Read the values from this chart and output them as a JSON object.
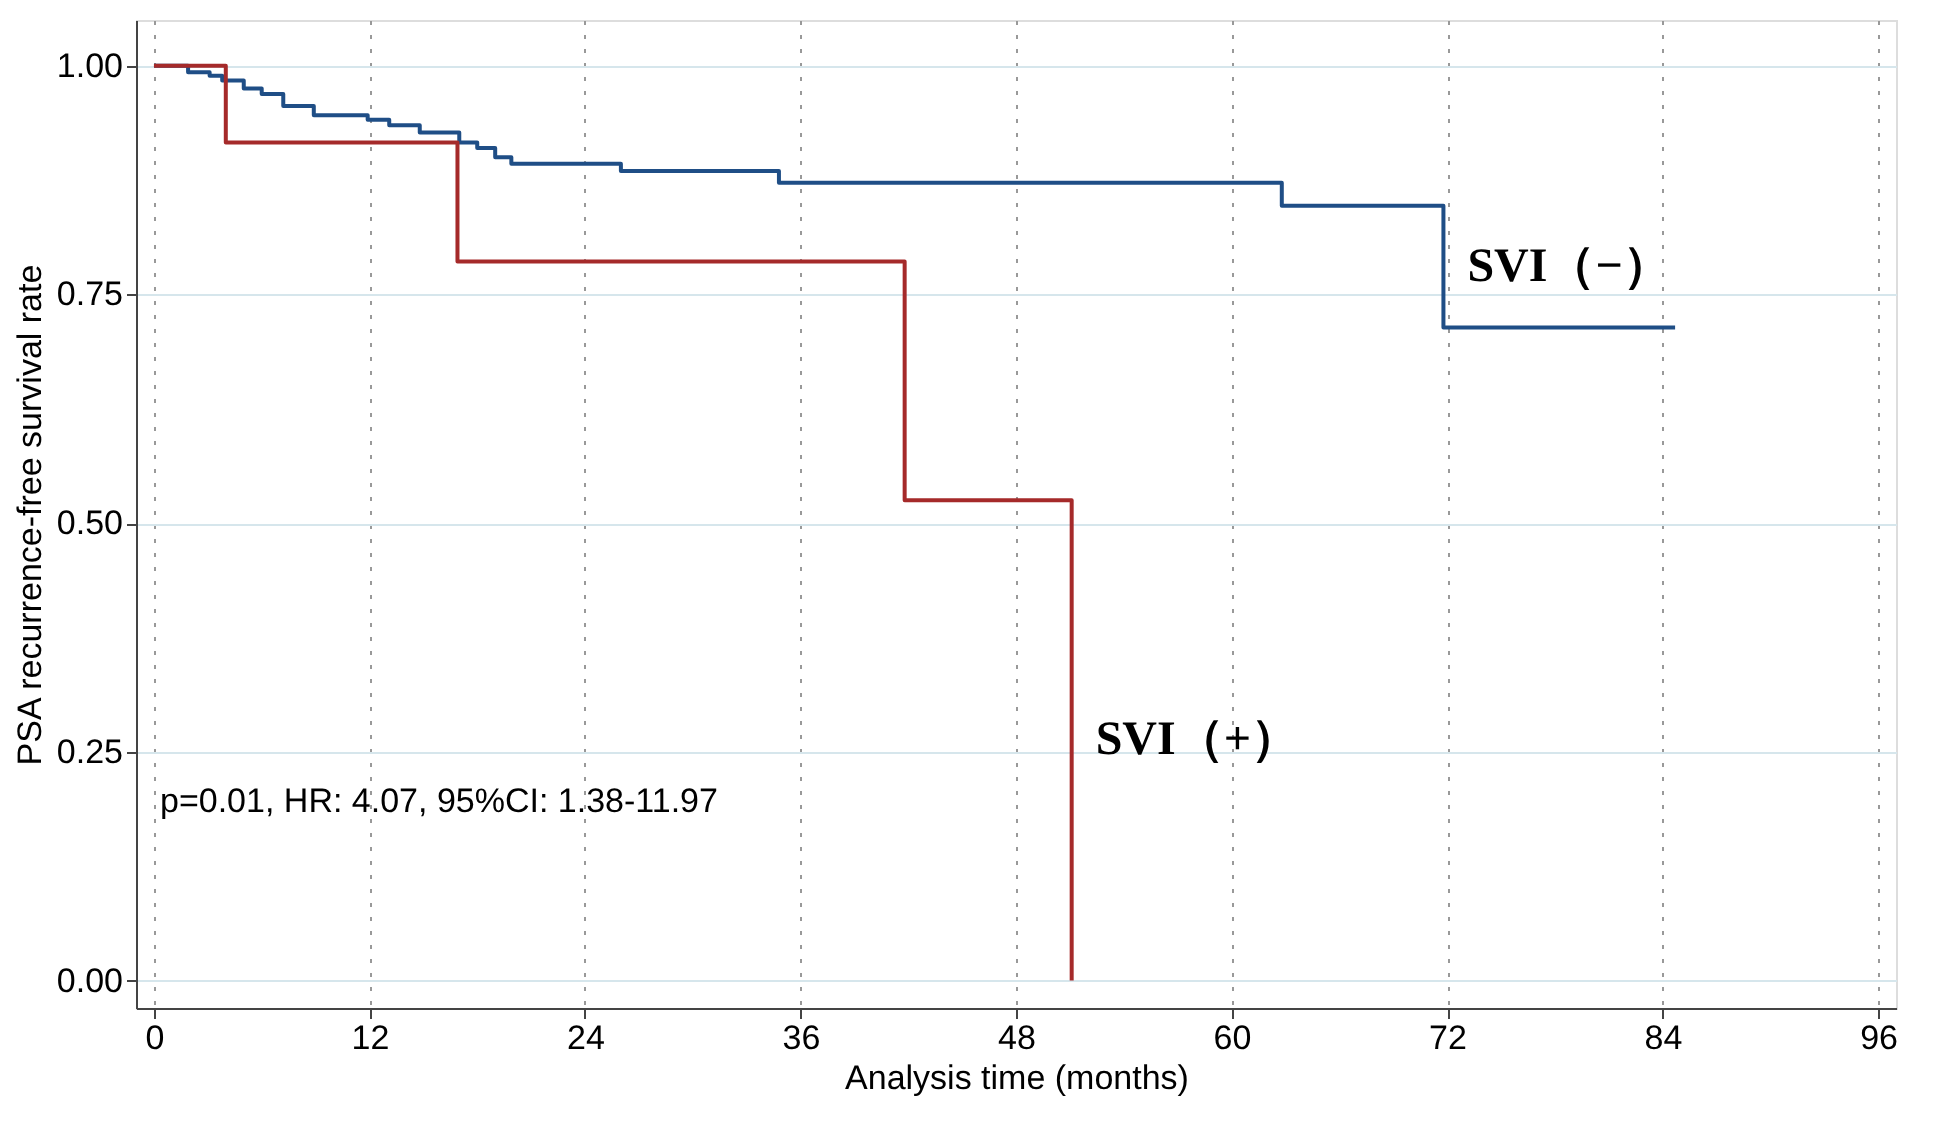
{
  "chart_data": {
    "type": "step",
    "xlabel": "Analysis time (months)",
    "ylabel": "PSA recurrence-free survival rate",
    "xlim": [
      -1,
      97
    ],
    "ylim": [
      -0.03,
      1.05
    ],
    "xticks": [
      0,
      12,
      24,
      36,
      48,
      60,
      72,
      84,
      96
    ],
    "yticks": [
      {
        "value": 0,
        "label": "0.00"
      },
      {
        "value": 0.25,
        "label": "0.25"
      },
      {
        "value": 0.5,
        "label": "0.50"
      },
      {
        "value": 0.75,
        "label": "0.75"
      },
      {
        "value": 1,
        "label": "1.00"
      }
    ],
    "grid": true,
    "legend": false,
    "line_style": "solid",
    "marker": "none",
    "series": [
      {
        "name": "SVI（−）",
        "color": "#1f4e86",
        "x": [
          0,
          1.9,
          3.1,
          3.8,
          5.0,
          6.0,
          7.2,
          8.9,
          11.9,
          13.1,
          14.8,
          17.0,
          18.0,
          19.0,
          19.9,
          26.0,
          34.8,
          62.8,
          71.8,
          84.7
        ],
        "values": [
          1.0,
          0.993,
          0.989,
          0.984,
          0.975,
          0.969,
          0.956,
          0.946,
          0.941,
          0.935,
          0.927,
          0.916,
          0.91,
          0.9,
          0.893,
          0.885,
          0.872,
          0.847,
          0.714,
          0.714
        ]
      },
      {
        "name": "SVI（+）",
        "color": "#a52a2a",
        "x": [
          0,
          4.0,
          16.9,
          41.8,
          51.1
        ],
        "values": [
          1.0,
          0.916,
          0.786,
          0.525,
          0.0
        ]
      }
    ],
    "annotations": [
      "p=0.01, HR: 4.07, 95%CI: 1.38-11.97"
    ]
  }
}
